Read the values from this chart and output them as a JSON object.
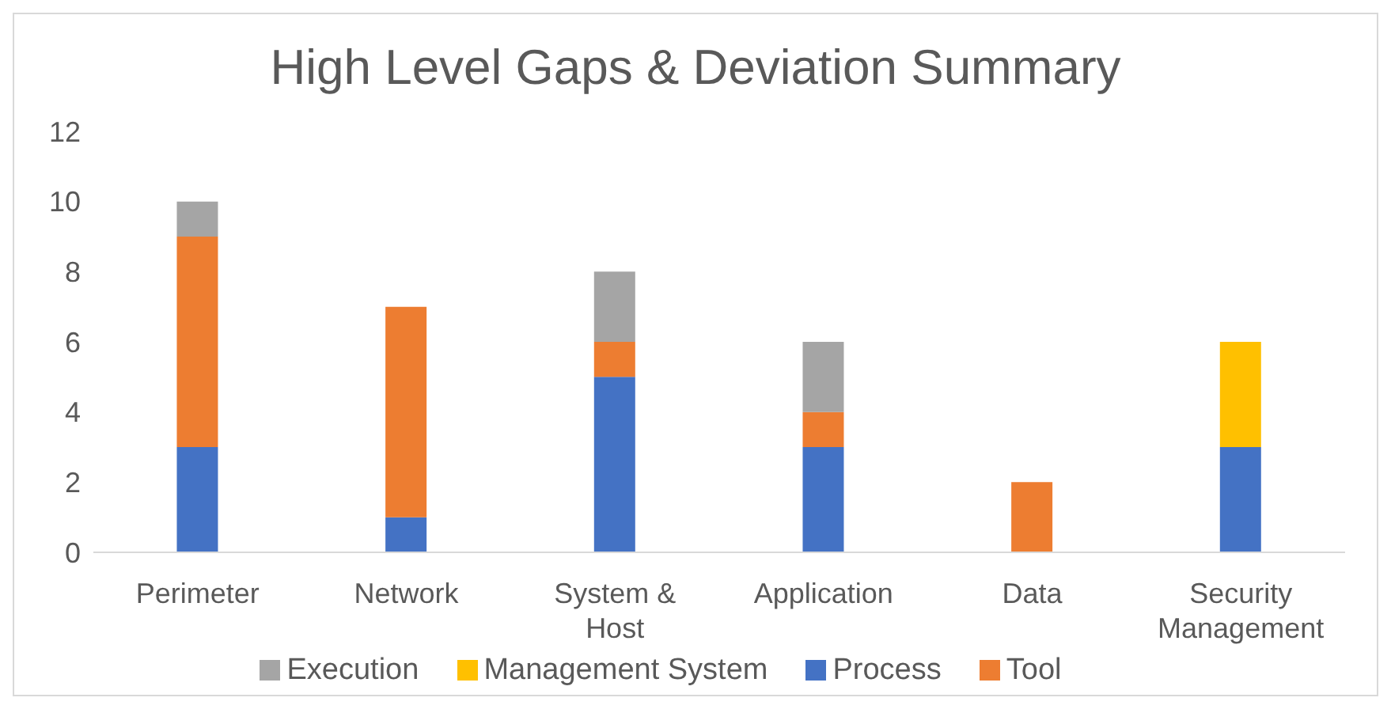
{
  "chart_data": {
    "type": "bar",
    "title": "High Level Gaps & Deviation Summary",
    "categories": [
      "Perimeter",
      "Network",
      "System & Host",
      "Application",
      "Data",
      "Security Management"
    ],
    "stacked": true,
    "series": [
      {
        "name": "Process",
        "color": "#4472c4",
        "values": [
          3,
          1,
          5,
          3,
          0,
          3
        ]
      },
      {
        "name": "Tool",
        "color": "#ed7d31",
        "values": [
          6,
          6,
          1,
          1,
          2,
          0
        ]
      },
      {
        "name": "Execution",
        "color": "#a5a5a5",
        "values": [
          1,
          0,
          2,
          2,
          0,
          0
        ]
      },
      {
        "name": "Management System",
        "color": "#ffc000",
        "values": [
          0,
          0,
          0,
          0,
          0,
          3
        ]
      }
    ],
    "ylim": [
      0,
      12
    ],
    "yticks": [
      0,
      2,
      4,
      6,
      8,
      10,
      12
    ],
    "grid": false,
    "legend": "bottom"
  }
}
